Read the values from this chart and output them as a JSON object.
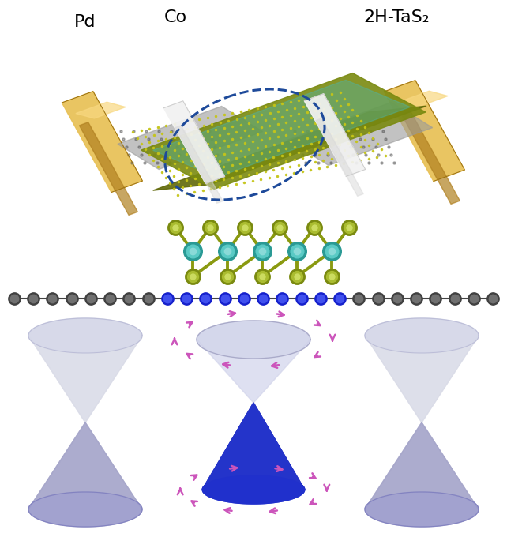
{
  "labels": {
    "Pd": "Pd",
    "Co": "Co",
    "TaS2": "2H-TaS₂"
  },
  "colors": {
    "background": "#ffffff",
    "gold_light": "#F0C870",
    "gold_mid": "#D4A030",
    "gold_dark": "#A07820",
    "graphene_gray": "#888888",
    "graphene_hex": "#666666",
    "tas2_olive": "#8B9B1A",
    "tas2_teal_dark": "#2A9A95",
    "tas2_teal_light": "#5ACAC5",
    "tas2_sulfur_dark": "#7A8A1A",
    "tas2_sulfur_light": "#AABC3A",
    "dashed_circle": "#1E4A9A",
    "chain_gray_dark": "#505050",
    "chain_gray_light": "#909090",
    "chain_blue_dark": "#1a22cc",
    "chain_blue_light": "#4455EE",
    "cone_lr_top_fill": "#dde0f0",
    "cone_lr_edge": "#aaaacc",
    "cone_lr_bot_fill": "#8888CC",
    "cone_lr_bot_dark": "#6666AA",
    "cone_c_upper_fill": "#d0d3ee",
    "cone_c_upper_edge": "#9999BB",
    "cone_c_blue_dark": "#1020CC",
    "cone_c_blue_light": "#3344DD",
    "spin_color": "#CC55BB",
    "white_bar": "#f0f0f0",
    "white_bar_edge": "#cccccc"
  }
}
